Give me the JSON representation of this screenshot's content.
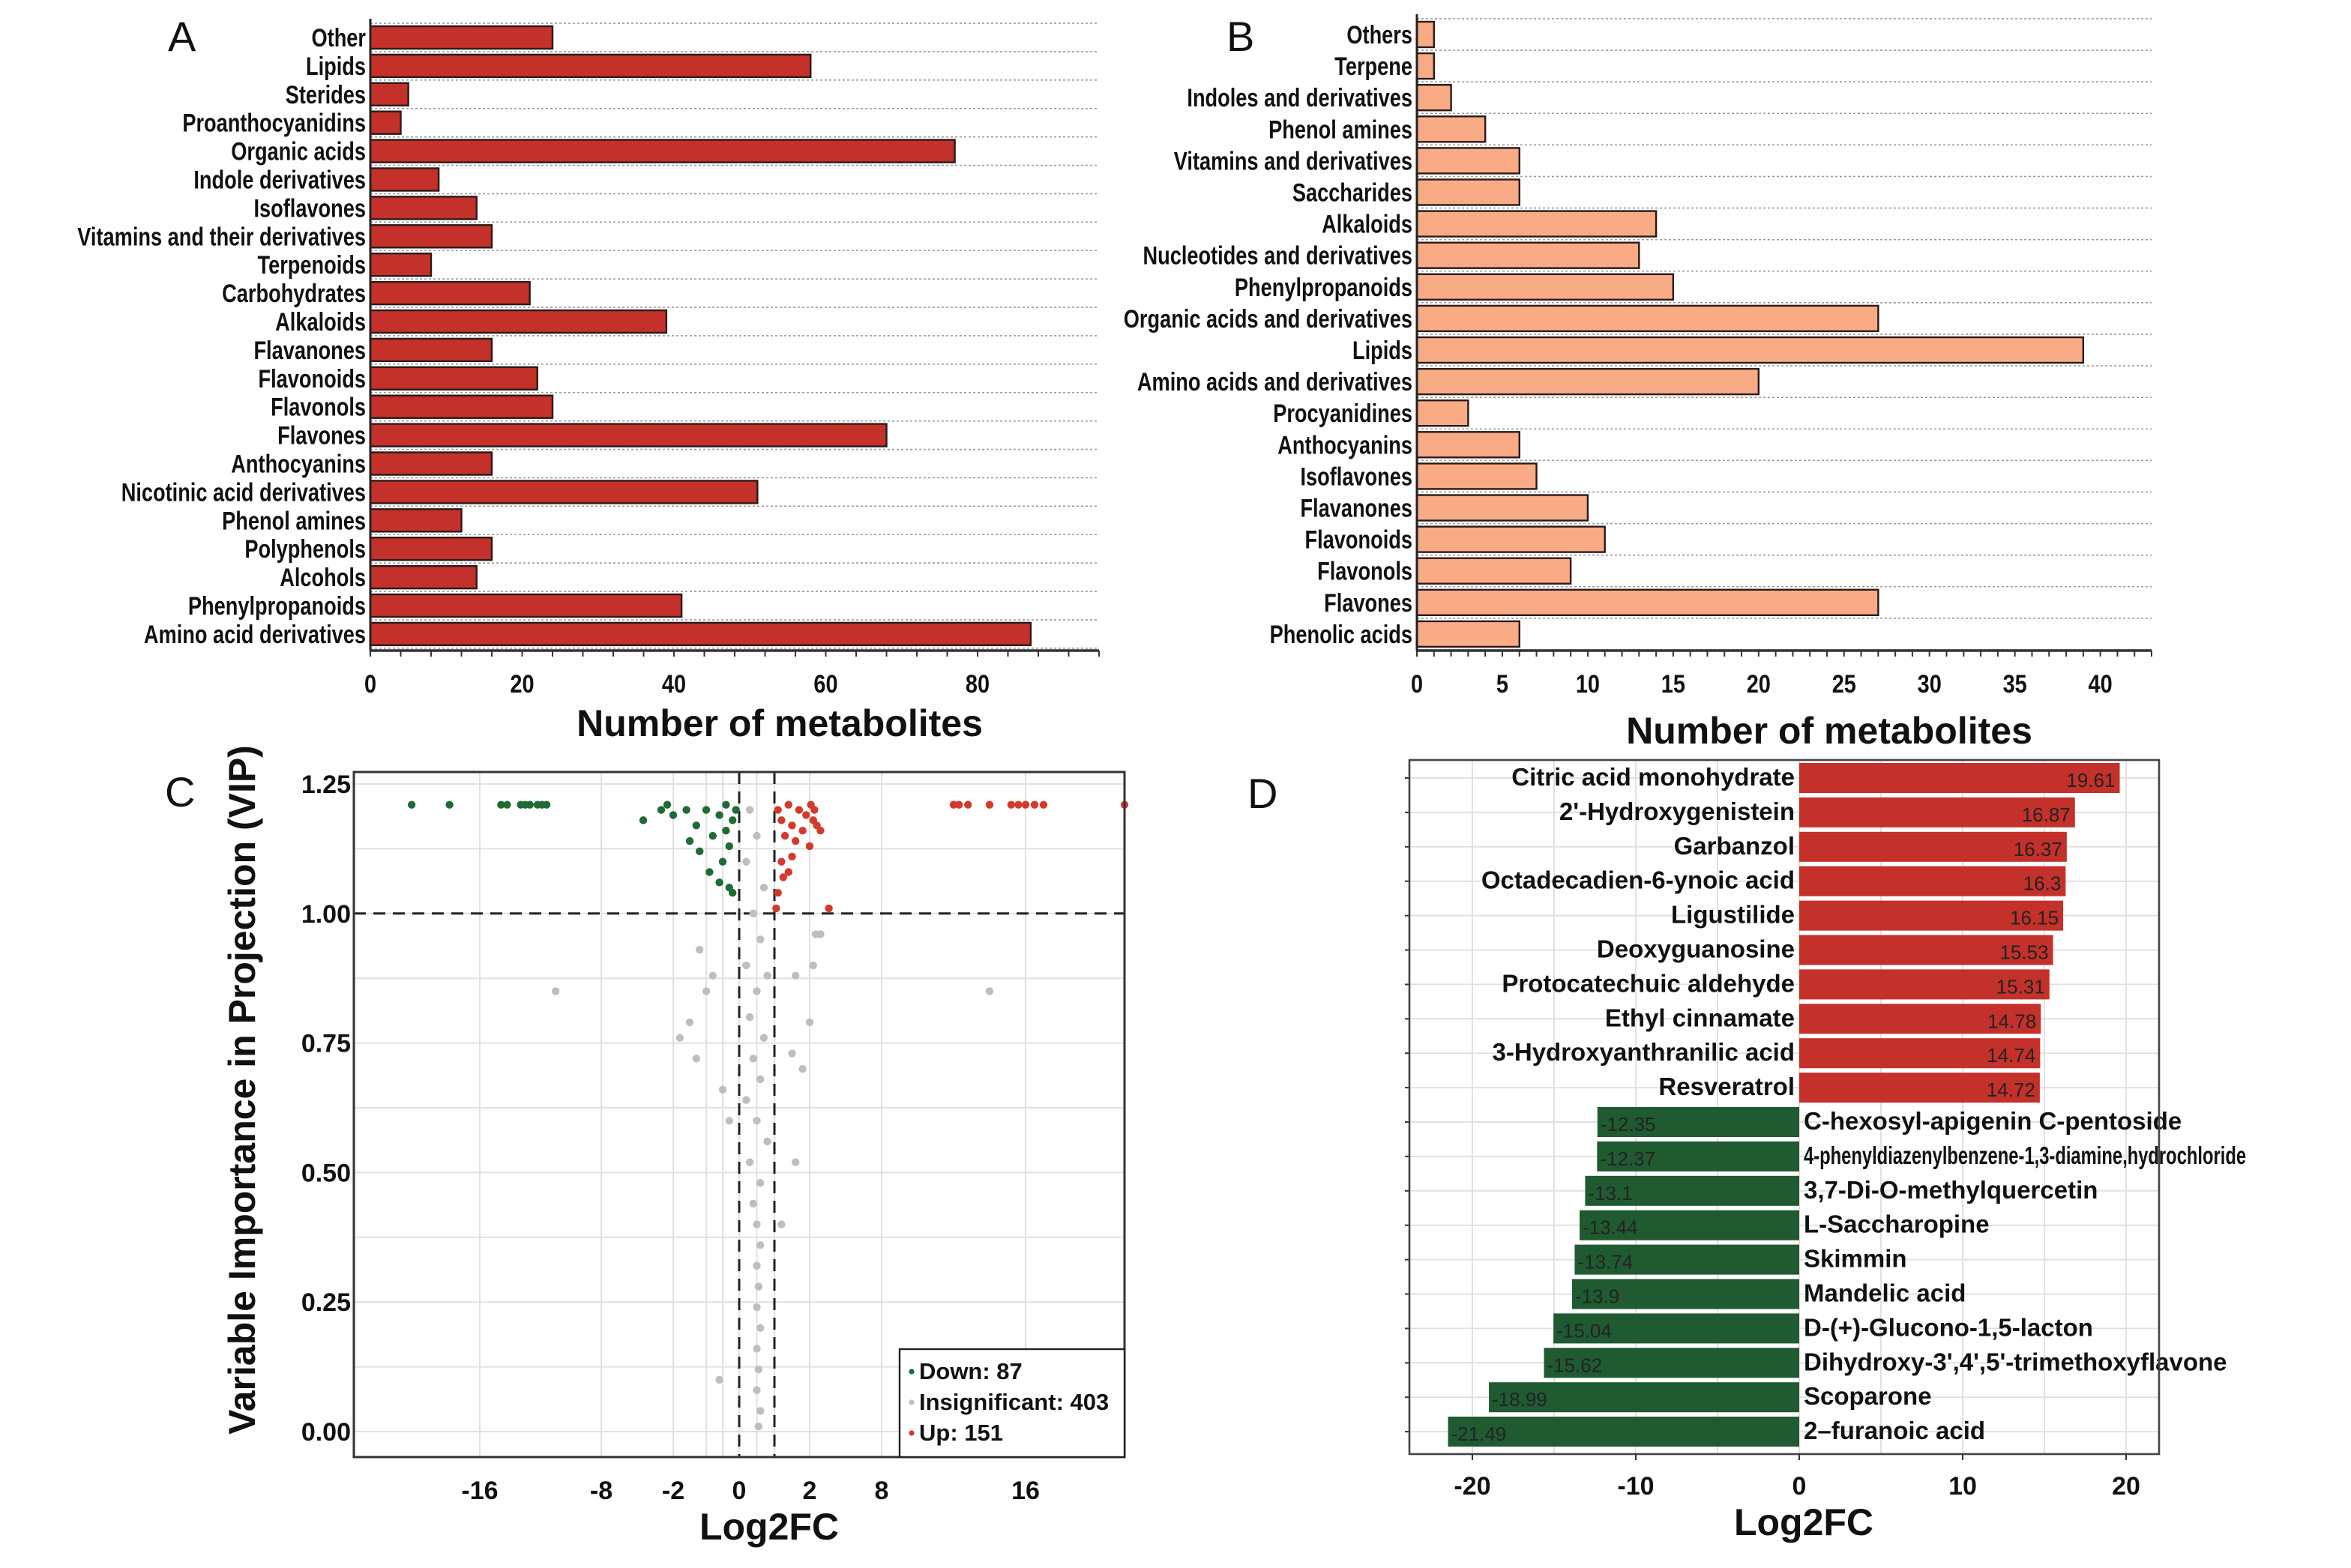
{
  "panels": {
    "a": "A",
    "b": "B",
    "c": "C",
    "d": "D"
  },
  "colors": {
    "a_bar": "#c4302a",
    "b_bar": "#f8ab85",
    "up": "#d33a2c",
    "down": "#1f6b33",
    "ns": "#c4bcbc",
    "d_up": "#c3312a",
    "d_down": "#1f5a31"
  },
  "chart_data": [
    {
      "panel": "A",
      "type": "bar",
      "orientation": "horizontal",
      "categories": [
        "Other",
        "Lipids",
        "Sterides",
        "Proanthocyanidins",
        "Organic acids",
        "Indole derivatives",
        "Isoflavones",
        "Vitamins and their derivatives",
        "Terpenoids",
        "Carbohydrates",
        "Alkaloids",
        "Flavanones",
        "Flavonoids",
        "Flavonols",
        "Flavones",
        "Anthocyanins",
        "Nicotinic acid derivatives",
        "Phenol amines",
        "Polyphenols",
        "Alcohols",
        "Phenylpropanoids",
        "Amino acid derivatives"
      ],
      "values": [
        24,
        58,
        5,
        4,
        77,
        9,
        14,
        16,
        8,
        21,
        39,
        16,
        22,
        24,
        68,
        16,
        51,
        12,
        16,
        14,
        41,
        87
      ],
      "xlabel": "Number of metabolites",
      "xticks": [
        "0",
        "20",
        "40",
        "60",
        "80"
      ],
      "xlim": [
        0,
        96
      ]
    },
    {
      "panel": "B",
      "type": "bar",
      "orientation": "horizontal",
      "categories": [
        "Others",
        "Terpene",
        "Indoles and derivatives",
        "Phenol amines",
        "Vitamins and derivatives",
        "Saccharides",
        "Alkaloids",
        "Nucleotides and derivatives",
        "Phenylpropanoids",
        "Organic acids and derivatives",
        "Lipids",
        "Amino acids and derivatives",
        "Procyanidines",
        "Anthocyanins",
        "Isoflavones",
        "Flavanones",
        "Flavonoids",
        "Flavonols",
        "Flavones",
        "Phenolic acids"
      ],
      "values": [
        1,
        1,
        2,
        4,
        6,
        6,
        14,
        13,
        15,
        27,
        39,
        20,
        3,
        6,
        7,
        10,
        11,
        9,
        27,
        6
      ],
      "xlabel": "Number of metabolites",
      "xticks": [
        "0",
        "5",
        "10",
        "15",
        "20",
        "25",
        "30",
        "35",
        "40"
      ],
      "xlim": [
        0,
        43
      ]
    },
    {
      "panel": "C",
      "type": "scatter",
      "xlabel": "Log2FC",
      "ylabel": "Variable Importance in Projection (VIP)",
      "xticks": [
        "-16",
        "-8",
        "-2",
        "0",
        "2",
        "8",
        "16"
      ],
      "yticks": [
        "0.00",
        "0.25",
        "0.50",
        "0.75",
        "1.00",
        "1.25"
      ],
      "ylim": [
        -0.05,
        1.27
      ],
      "thresholds": {
        "vip": 1.0,
        "log2fc": [
          0,
          1
        ]
      },
      "legend": [
        {
          "group": "down",
          "label": "Down: 87"
        },
        {
          "group": "ns",
          "label": "Insignificant: 403"
        },
        {
          "group": "up",
          "label": "Up: 151"
        }
      ],
      "points": [
        [
          -20.5,
          1.21,
          "down"
        ],
        [
          -18,
          1.21,
          "down"
        ],
        [
          -14.6,
          1.21,
          "down"
        ],
        [
          -14.2,
          1.21,
          "down"
        ],
        [
          -13.3,
          1.21,
          "down"
        ],
        [
          -13,
          1.21,
          "down"
        ],
        [
          -12.7,
          1.21,
          "down"
        ],
        [
          -12.2,
          1.21,
          "down"
        ],
        [
          -11.9,
          1.21,
          "down"
        ],
        [
          -11.6,
          1.21,
          "down"
        ],
        [
          -4.5,
          1.18,
          "down"
        ],
        [
          -3,
          1.2,
          "down"
        ],
        [
          -2.5,
          1.21,
          "down"
        ],
        [
          -2,
          1.19,
          "down"
        ],
        [
          -1.6,
          1.2,
          "down"
        ],
        [
          -1.3,
          1.17,
          "down"
        ],
        [
          -1,
          1.2,
          "down"
        ],
        [
          -0.8,
          1.15,
          "down"
        ],
        [
          -0.6,
          1.19,
          "down"
        ],
        [
          -0.4,
          1.21,
          "down"
        ],
        [
          -0.3,
          1.13,
          "down"
        ],
        [
          -0.2,
          1.18,
          "down"
        ],
        [
          -0.1,
          1.2,
          "down"
        ],
        [
          -1.5,
          1.14,
          "down"
        ],
        [
          -0.5,
          1.1,
          "down"
        ],
        [
          -0.9,
          1.08,
          "down"
        ],
        [
          -0.3,
          1.05,
          "down"
        ],
        [
          -0.2,
          1.04,
          "down"
        ],
        [
          -0.6,
          1.06,
          "down"
        ],
        [
          -1.2,
          1.12,
          "down"
        ],
        [
          -0.4,
          1.16,
          "down"
        ],
        [
          12,
          1.21,
          "up"
        ],
        [
          12.3,
          1.21,
          "up"
        ],
        [
          12.8,
          1.21,
          "up"
        ],
        [
          14,
          1.21,
          "up"
        ],
        [
          15.2,
          1.21,
          "up"
        ],
        [
          15.6,
          1.21,
          "up"
        ],
        [
          16,
          1.21,
          "up"
        ],
        [
          16.5,
          1.21,
          "up"
        ],
        [
          17,
          1.21,
          "up"
        ],
        [
          21.5,
          1.21,
          "up"
        ],
        [
          1.1,
          1.2,
          "up"
        ],
        [
          1.2,
          1.18,
          "up"
        ],
        [
          1.4,
          1.21,
          "up"
        ],
        [
          1.5,
          1.17,
          "up"
        ],
        [
          1.7,
          1.2,
          "up"
        ],
        [
          1.9,
          1.19,
          "up"
        ],
        [
          2.1,
          1.21,
          "up"
        ],
        [
          2.3,
          1.18,
          "up"
        ],
        [
          2.6,
          1.17,
          "up"
        ],
        [
          2.9,
          1.16,
          "up"
        ],
        [
          1.3,
          1.15,
          "up"
        ],
        [
          1.6,
          1.14,
          "up"
        ],
        [
          1.2,
          1.1,
          "up"
        ],
        [
          1.4,
          1.08,
          "up"
        ],
        [
          1.5,
          1.11,
          "up"
        ],
        [
          1.1,
          1.04,
          "up"
        ],
        [
          1.05,
          1.01,
          "up"
        ],
        [
          3.6,
          1.01,
          "up"
        ],
        [
          2,
          1.13,
          "up"
        ],
        [
          2.4,
          1.2,
          "up"
        ],
        [
          1.8,
          1.16,
          "up"
        ],
        [
          1.25,
          1.07,
          "up"
        ],
        [
          -11,
          0.85,
          "ns"
        ],
        [
          14,
          0.85,
          "ns"
        ],
        [
          0.3,
          1.2,
          "ns"
        ],
        [
          0.5,
          1.15,
          "ns"
        ],
        [
          0.2,
          1.1,
          "ns"
        ],
        [
          0.7,
          1.05,
          "ns"
        ],
        [
          0.4,
          1.0,
          "ns"
        ],
        [
          0.6,
          0.95,
          "ns"
        ],
        [
          0.2,
          0.9,
          "ns"
        ],
        [
          0.8,
          0.88,
          "ns"
        ],
        [
          0.5,
          0.85,
          "ns"
        ],
        [
          0.3,
          0.8,
          "ns"
        ],
        [
          0.7,
          0.76,
          "ns"
        ],
        [
          0.4,
          0.72,
          "ns"
        ],
        [
          0.6,
          0.68,
          "ns"
        ],
        [
          0.2,
          0.64,
          "ns"
        ],
        [
          0.5,
          0.6,
          "ns"
        ],
        [
          0.8,
          0.56,
          "ns"
        ],
        [
          0.3,
          0.52,
          "ns"
        ],
        [
          0.6,
          0.48,
          "ns"
        ],
        [
          0.4,
          0.44,
          "ns"
        ],
        [
          0.5,
          0.4,
          "ns"
        ],
        [
          0.6,
          0.36,
          "ns"
        ],
        [
          0.5,
          0.32,
          "ns"
        ],
        [
          0.55,
          0.28,
          "ns"
        ],
        [
          0.5,
          0.24,
          "ns"
        ],
        [
          0.6,
          0.2,
          "ns"
        ],
        [
          0.5,
          0.16,
          "ns"
        ],
        [
          0.55,
          0.12,
          "ns"
        ],
        [
          0.5,
          0.08,
          "ns"
        ],
        [
          0.6,
          0.04,
          "ns"
        ],
        [
          0.55,
          0.01,
          "ns"
        ],
        [
          -1.2,
          0.93,
          "ns"
        ],
        [
          -0.8,
          0.88,
          "ns"
        ],
        [
          -1,
          0.85,
          "ns"
        ],
        [
          -1.5,
          0.79,
          "ns"
        ],
        [
          -1.8,
          0.76,
          "ns"
        ],
        [
          -1.3,
          0.72,
          "ns"
        ],
        [
          -0.5,
          0.66,
          "ns"
        ],
        [
          -0.3,
          0.6,
          "ns"
        ],
        [
          2.5,
          0.96,
          "ns"
        ],
        [
          2.9,
          0.96,
          "ns"
        ],
        [
          1.6,
          0.88,
          "ns"
        ],
        [
          2.3,
          0.9,
          "ns"
        ],
        [
          2,
          0.79,
          "ns"
        ],
        [
          1.5,
          0.73,
          "ns"
        ],
        [
          1.8,
          0.7,
          "ns"
        ],
        [
          1.6,
          0.52,
          "ns"
        ],
        [
          1.2,
          0.4,
          "ns"
        ],
        [
          -0.6,
          0.1,
          "ns"
        ]
      ]
    },
    {
      "panel": "D",
      "type": "bar",
      "orientation": "horizontal",
      "categories": [
        "Citric acid monohydrate",
        "2'-Hydroxygenistein",
        "Garbanzol",
        "Octadecadien-6-ynoic acid",
        "Ligustilide",
        "Deoxyguanosine",
        "Protocatechuic aldehyde",
        "Ethyl cinnamate",
        "3-Hydroxyanthranilic acid",
        "Resveratrol",
        "C-hexosyl-apigenin C-pentoside",
        "4-phenyldiazenylbenzene-1,3-diamine,hydrochloride",
        "3,7-Di-O-methylquercetin",
        "L-Saccharopine",
        "Skimmin",
        "Mandelic acid",
        "D-(+)-Glucono-1,5-lacton",
        "Dihydroxy-3',4',5'-trimethoxyflavone",
        "Scoparone",
        "2–furanoic acid"
      ],
      "values": [
        19.61,
        16.87,
        16.37,
        16.3,
        16.15,
        15.53,
        15.31,
        14.78,
        14.74,
        14.72,
        -12.35,
        -12.37,
        -13.1,
        -13.44,
        -13.74,
        -13.9,
        -15.04,
        -15.62,
        -18.99,
        -21.49
      ],
      "value_labels": [
        "19.61",
        "16.87",
        "16.37",
        "16.3",
        "16.15",
        "15.53",
        "15.31",
        "14.78",
        "14.74",
        "14.72",
        "-12.35",
        "-12.37",
        "-13.1",
        "-13.44",
        "-13.74",
        "-13.9",
        "-15.04",
        "-15.62",
        "-18.99",
        "-21.49"
      ],
      "xlabel": "Log2FC",
      "xticks": [
        "-20",
        "-10",
        "0",
        "10",
        "20"
      ],
      "xlim": [
        -24,
        22
      ]
    }
  ]
}
